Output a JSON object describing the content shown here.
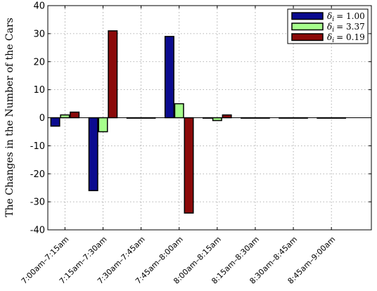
{
  "chart_data": {
    "type": "bar",
    "title": "",
    "xlabel": "",
    "ylabel": "The Changes in the Number of the Cars",
    "ylim": [
      -40,
      40
    ],
    "yticks": [
      -40,
      -30,
      -20,
      -10,
      0,
      10,
      20,
      30,
      40
    ],
    "grid": true,
    "legend_position": "top-right",
    "categories": [
      "7:00am–7:15am",
      "7:15am–7:30am",
      "7:30am–7:45am",
      "7:45am–8:00am",
      "8:00am–8:15am",
      "8:15am–8:30am",
      "8:30am–8:45am",
      "8:45am–9:00am"
    ],
    "series": [
      {
        "name": "δᵢ = 1.00",
        "sub": "i",
        "num": "= 1.00",
        "color": "#0b0b8f",
        "values": [
          -3,
          -26,
          0,
          29,
          0,
          0,
          0,
          0
        ]
      },
      {
        "name": "δᵢ = 3.37",
        "sub": "i",
        "num": "= 3.37",
        "color": "#a6ff8c",
        "values": [
          1,
          -5,
          0,
          5,
          -1,
          0,
          0,
          0
        ]
      },
      {
        "name": "δᵢ = 0.19",
        "sub": "i",
        "num": "= 0.19",
        "color": "#8b0a0a",
        "values": [
          2,
          31,
          0,
          -34,
          1,
          0,
          0,
          0
        ]
      }
    ]
  }
}
